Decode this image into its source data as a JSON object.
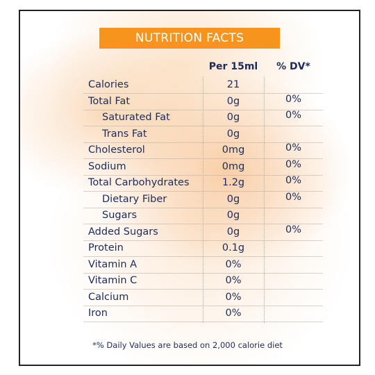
{
  "header": {
    "title": "NUTRITION FACTS"
  },
  "table": {
    "columns": [
      "Per 15ml",
      "% DV*"
    ],
    "rows": [
      {
        "label": "Calories",
        "per": "21"
      },
      {
        "label": "Total Fat",
        "per": "0g",
        "dv": "0%"
      },
      {
        "label": "Saturated Fat",
        "per": "0g",
        "dv": "0%",
        "indent": true
      },
      {
        "label": "Trans Fat",
        "per": "0g",
        "indent": true
      },
      {
        "label": "Cholesterol",
        "per": "0mg",
        "dv": "0%"
      },
      {
        "label": "Sodium",
        "per": "0mg",
        "dv": "0%"
      },
      {
        "label": "Total Carbohydrates",
        "per": "1.2g",
        "dv": "0%"
      },
      {
        "label": "Dietary Fiber",
        "per": "0g",
        "dv": "0%",
        "indent": true
      },
      {
        "label": "Sugars",
        "per": "0g",
        "indent": true
      },
      {
        "label": "Added Sugars",
        "per": "0g",
        "dv": "0%"
      },
      {
        "label": "Protein",
        "per": "0.1g"
      },
      {
        "label": "Vitamin A",
        "per": "0%"
      },
      {
        "label": "Vitamin C",
        "per": "0%"
      },
      {
        "label": "Calcium",
        "per": "0%"
      },
      {
        "label": "Iron",
        "per": "0%"
      }
    ]
  },
  "footnote": "*% Daily Values are based on 2,000 calorie diet"
}
